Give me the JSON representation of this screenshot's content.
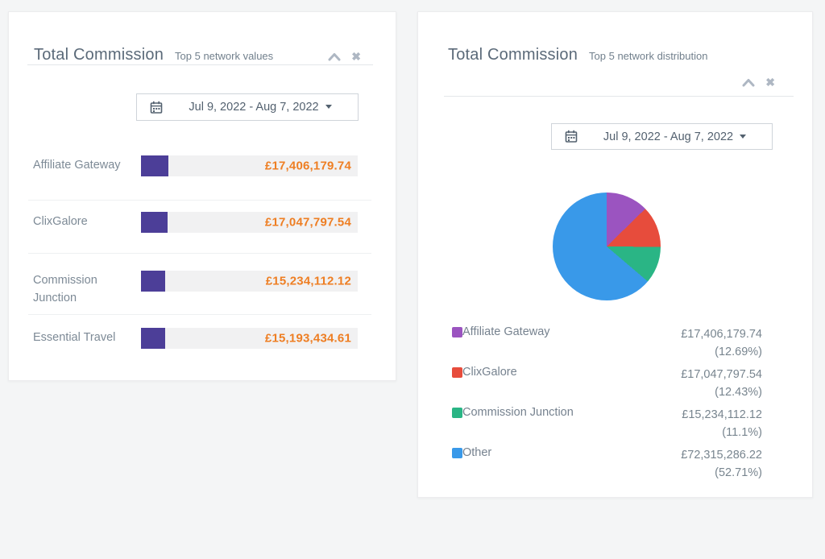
{
  "left_card": {
    "title": "Total Commission",
    "subtitle": "Top 5 network values",
    "date_range": "Jul 9, 2022 - Aug 7, 2022"
  },
  "right_card": {
    "title": "Total Commission",
    "subtitle": "Top 5 network distribution",
    "date_range": "Jul 9, 2022 - Aug 7, 2022"
  },
  "icons": {
    "close_glyph": "✖",
    "names": [
      "chevron-up-icon",
      "close-icon",
      "calendar-icon",
      "caret-down-icon"
    ]
  },
  "colors": {
    "page_background": "#f4f5f6",
    "card_background": "#ffffff",
    "title_text": "#5b6a79",
    "bar_fill": "#4c3e98",
    "bar_track": "#f1f1f2",
    "bar_value_text": "#ee7e23",
    "muted_text": "#7d8a96"
  },
  "chart_data": [
    {
      "type": "bar",
      "orientation": "horizontal",
      "title": "Total Commission",
      "subtitle": "Top 5 network values",
      "categories": [
        "Affiliate Gateway",
        "ClixGalore",
        "Commission Junction",
        "Essential Travel"
      ],
      "values": [
        17406179.74,
        17047797.54,
        15234112.12,
        15193434.61
      ],
      "value_labels": [
        "£17,406,179.74",
        "£17,047,797.54",
        "£15,234,112.12",
        "£15,193,434.61"
      ],
      "bar_percent_of_track": [
        12.69,
        12.43,
        11.1,
        11.08
      ],
      "bar_color": "#4c3e98",
      "track_color": "#f1f1f2",
      "value_label_color": "#ee7e23"
    },
    {
      "type": "pie",
      "title": "Total Commission",
      "subtitle": "Top 5 network distribution",
      "start_angle_deg": 0,
      "legend_position": "bottom",
      "slices": [
        {
          "label": "Affiliate Gateway",
          "value": 17406179.74,
          "value_label": "£17,406,179.74",
          "percent": 12.69,
          "percent_label": "(12.69%)",
          "color": "#9b54c0"
        },
        {
          "label": "ClixGalore",
          "value": 17047797.54,
          "value_label": "£17,047,797.54",
          "percent": 12.43,
          "percent_label": "(12.43%)",
          "color": "#e74c3c"
        },
        {
          "label": "Commission Junction",
          "value": 15234112.12,
          "value_label": "£15,234,112.12",
          "percent": 11.1,
          "percent_label": "(11.1%)",
          "color": "#2ab585"
        },
        {
          "label": "Other",
          "value": 72315286.22,
          "value_label": "£72,315,286.22",
          "percent": 52.71,
          "percent_label": "(52.71%)",
          "color": "#3999e9"
        }
      ]
    }
  ]
}
